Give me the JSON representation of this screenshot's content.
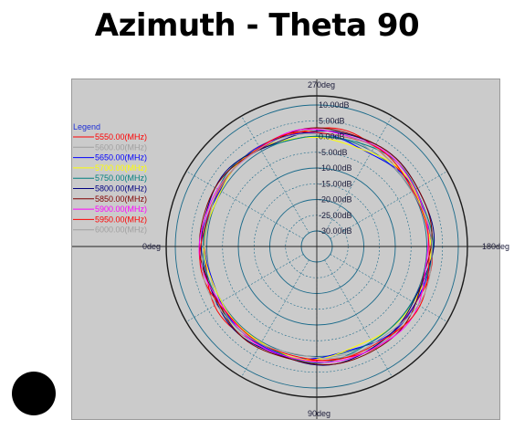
{
  "chart_data": {
    "type": "polar",
    "title": "Azimuth - Theta 90",
    "radial_unit": "dB",
    "radial_ticks": [
      "10.00dB",
      "5.00dB",
      "0.00dB",
      "-5.00dB",
      "-10.00dB",
      "-15.00dB",
      "-20.00dB",
      "-25.00dB",
      "-30.00dB"
    ],
    "radial_range": [
      -35,
      10
    ],
    "angle_labels": [
      "270deg",
      "180deg",
      "90deg",
      "0deg"
    ],
    "legend": {
      "title": "Legend",
      "position": "left"
    },
    "grid": true,
    "series": [
      {
        "name": "5550.00(MHz)",
        "color": "#ff0000",
        "gain_db": 1.5
      },
      {
        "name": "5600.00(MHz)",
        "color": "#a0a0a0",
        "gain_db": 1.2
      },
      {
        "name": "5650.00(MHz)",
        "color": "#0000ff",
        "gain_db": 0.8
      },
      {
        "name": "5700.00(MHz)",
        "color": "#ffff00",
        "gain_db": 0.4
      },
      {
        "name": "5750.00(MHz)",
        "color": "#008080",
        "gain_db": 1.0
      },
      {
        "name": "5800.00(MHz)",
        "color": "#000080",
        "gain_db": 1.8
      },
      {
        "name": "5850.00(MHz)",
        "color": "#800000",
        "gain_db": 2.0
      },
      {
        "name": "5900.00(MHz)",
        "color": "#ff00ff",
        "gain_db": 1.6
      },
      {
        "name": "5950.00(MHz)",
        "color": "#ff0000",
        "gain_db": 1.3
      },
      {
        "name": "6000.00(MHz)",
        "color": "#a0a0a0",
        "gain_db": 1.1
      }
    ]
  }
}
